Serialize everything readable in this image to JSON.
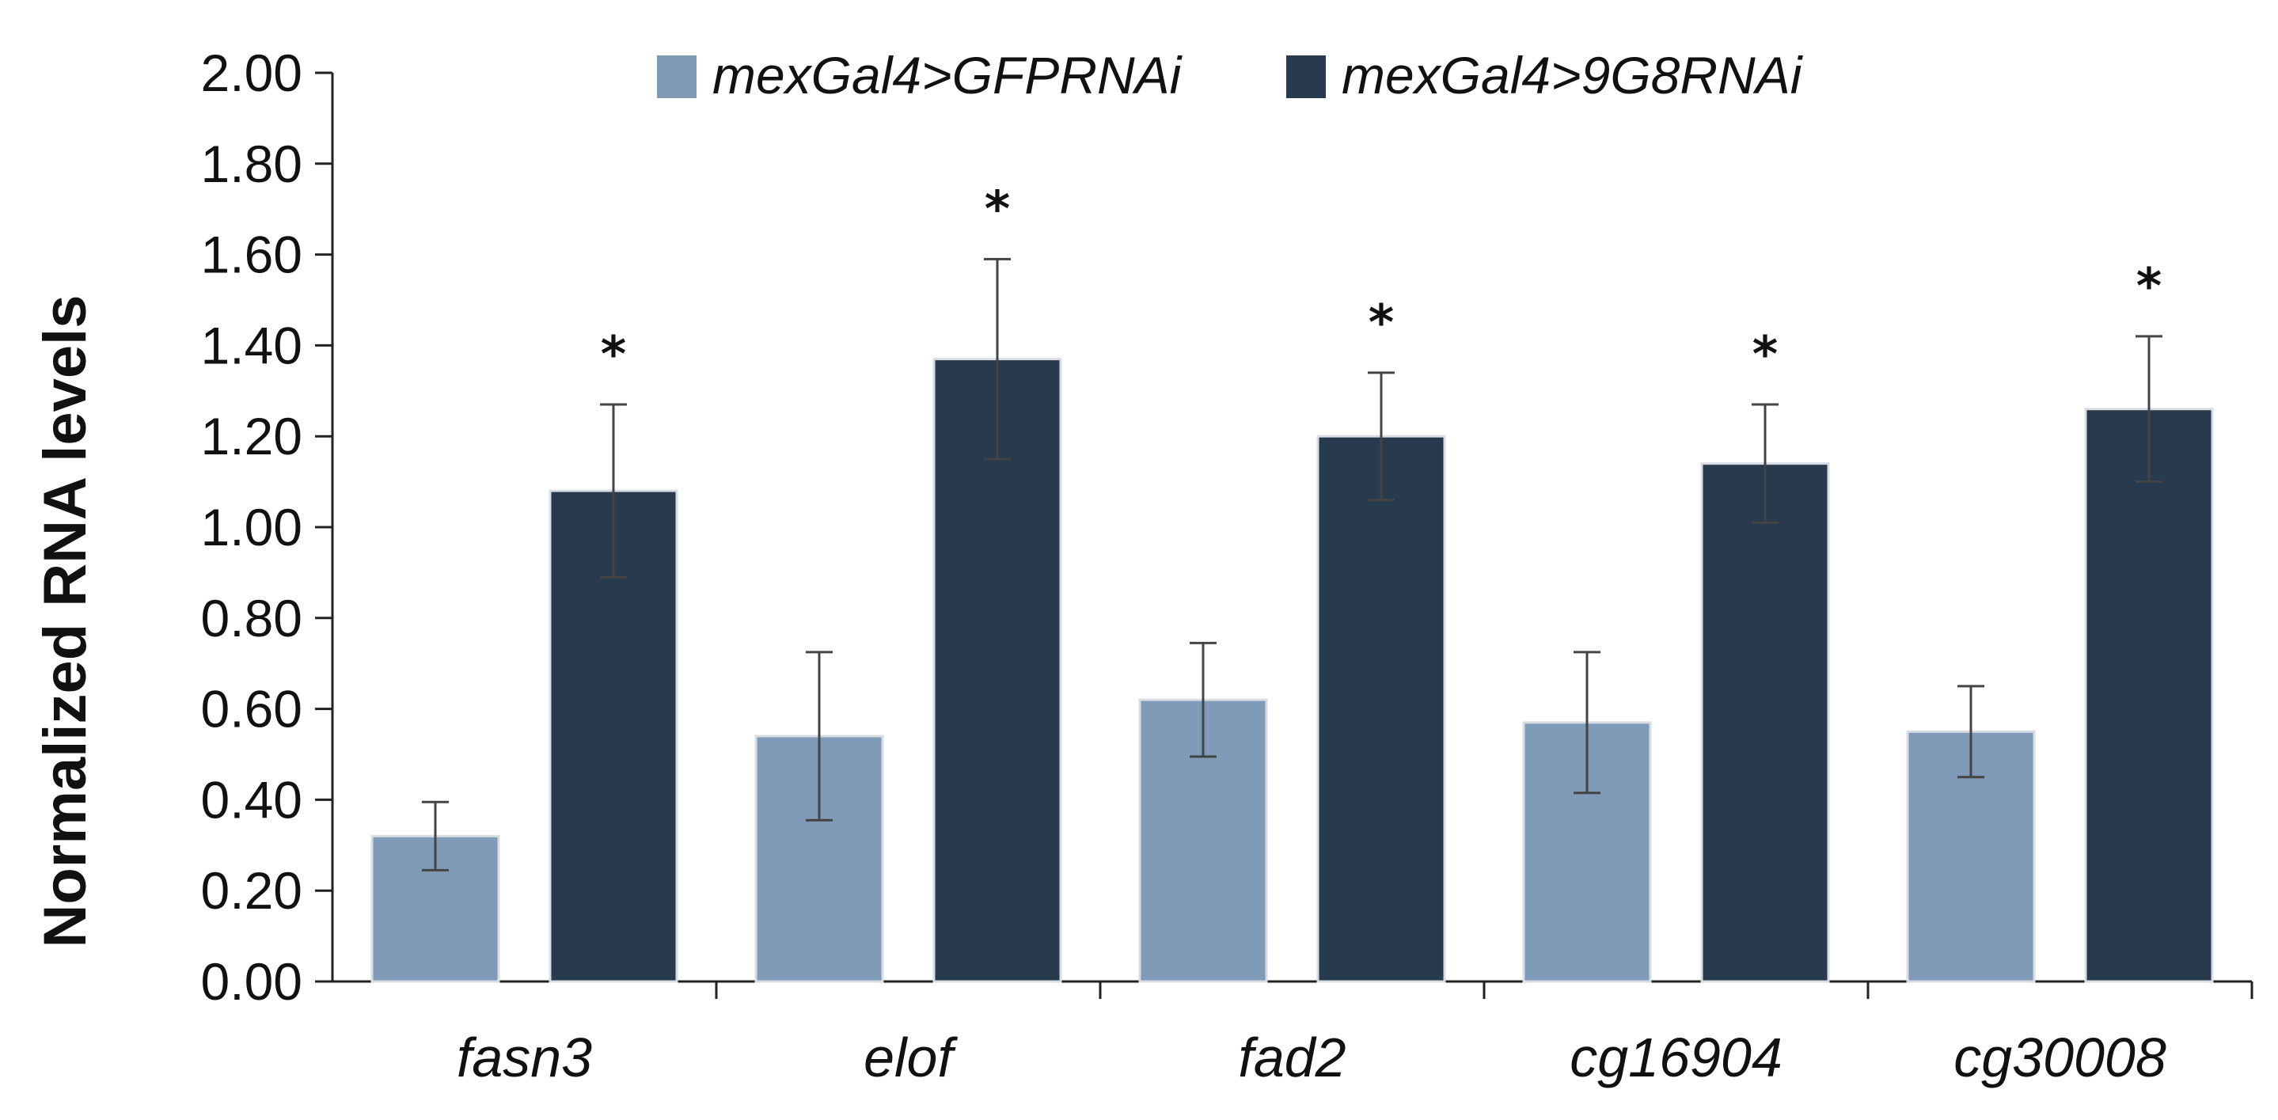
{
  "chart_data": {
    "type": "bar",
    "title": "",
    "xlabel": "",
    "ylabel": "Normalized RNA levels",
    "ylim": [
      0,
      2.0
    ],
    "yticks": [
      "0.00",
      "0.20",
      "0.40",
      "0.60",
      "0.80",
      "1.00",
      "1.20",
      "1.40",
      "1.60",
      "1.80",
      "2.00"
    ],
    "grid": false,
    "legend_position": "top-center",
    "categories": [
      "fasn3",
      "elof",
      "fad2",
      "cg16904",
      "cg30008"
    ],
    "series": [
      {
        "name": "mexGal4>GFPRNAi",
        "color": "#7f9bb8",
        "values": [
          0.32,
          0.54,
          0.62,
          0.57,
          0.55
        ],
        "errors": [
          0.075,
          0.185,
          0.125,
          0.155,
          0.1
        ],
        "significance": [
          "",
          "",
          "",
          "",
          ""
        ]
      },
      {
        "name": "mexGal4>9G8RNAi",
        "color": "#283a4e",
        "values": [
          1.08,
          1.37,
          1.2,
          1.14,
          1.26
        ],
        "errors": [
          0.19,
          0.22,
          0.14,
          0.13,
          0.16
        ],
        "significance": [
          "*",
          "*",
          "*",
          "*",
          "*"
        ]
      }
    ]
  }
}
